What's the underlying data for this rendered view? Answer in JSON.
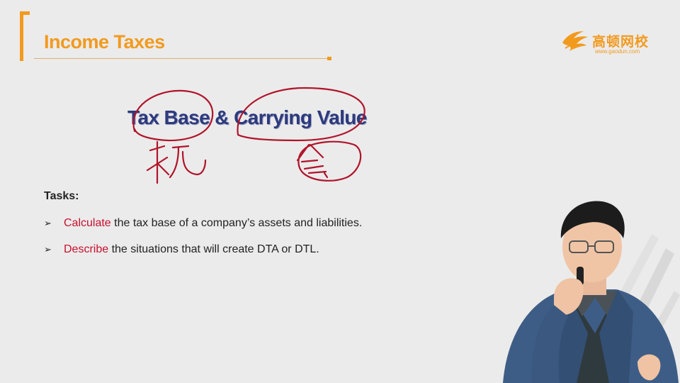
{
  "header": {
    "title": "Income Taxes"
  },
  "logo": {
    "name_cn": "高顿网校",
    "url": "www.gaodun.com"
  },
  "main": {
    "title": "Tax Base & Carrying Value",
    "tasks_heading": "Tasks:",
    "tasks": [
      {
        "verb": "Calculate",
        "rest": " the tax base of a company’s assets and liabilities."
      },
      {
        "verb": "Describe",
        "rest": " the situations that will create DTA or DTL."
      }
    ]
  },
  "colors": {
    "accent": "#f29a1e",
    "title_navy": "#2d3a7c",
    "verb_red": "#c8102e",
    "annotation_ink": "#b0142a"
  },
  "icons": {
    "bullet": "arrow-bullet-icon",
    "logo": "gaodun-logo-icon"
  }
}
